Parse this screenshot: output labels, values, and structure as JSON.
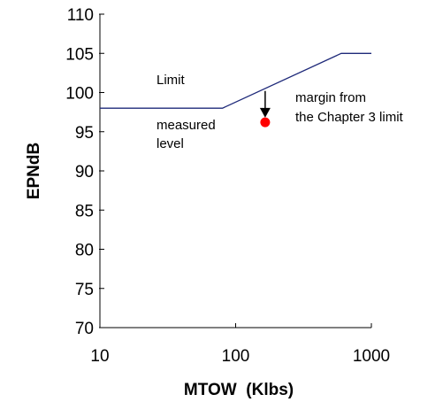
{
  "chart_data": {
    "type": "line",
    "x_scale": "log",
    "xlabel": "MTOW  (Klbs)",
    "ylabel": "EPNdB",
    "xlim": [
      10,
      1000
    ],
    "ylim": [
      70,
      110
    ],
    "x_ticks": [
      10,
      100,
      1000
    ],
    "x_tick_labels": [
      "10",
      "100",
      "1000"
    ],
    "y_ticks": [
      70,
      75,
      80,
      85,
      90,
      95,
      100,
      105,
      110
    ],
    "y_tick_labels": [
      "70",
      "75",
      "80",
      "85",
      "90",
      "95",
      "100",
      "105",
      "110"
    ],
    "grid": false,
    "legend": "none",
    "series": [
      {
        "name": "Limit",
        "color": "#1f2a7a",
        "x": [
          10,
          80,
          600,
          1000
        ],
        "y": [
          98,
          98,
          105,
          105
        ]
      }
    ],
    "points": [
      {
        "name": "measured level",
        "x": 165,
        "y": 96.2,
        "color": "#ff0000"
      }
    ],
    "arrow": {
      "x": 165,
      "y_from": 100.2,
      "y_to": 96.8,
      "color": "#000000"
    },
    "annotations": {
      "limit_label": "Limit",
      "measured_line1": "measured",
      "measured_line2": "level",
      "margin_line1": "margin from",
      "margin_line2": "the Chapter 3 limit"
    }
  }
}
